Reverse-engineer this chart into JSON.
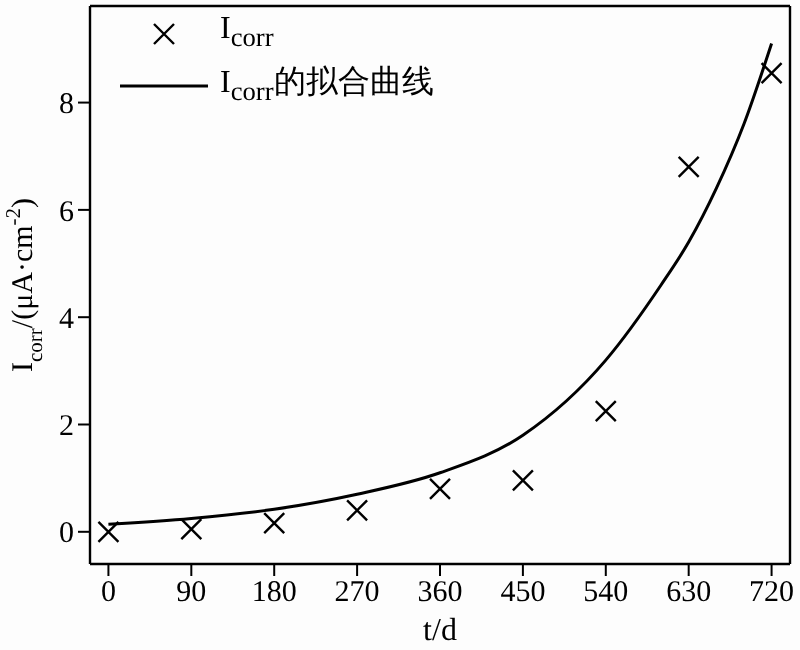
{
  "chart_data": {
    "type": "scatter",
    "xlabel": "t/d",
    "ylabel": "I$_{corr}$/(μA·cm$^{-2}$)",
    "x": [
      0,
      90,
      180,
      270,
      360,
      450,
      540,
      630,
      720
    ],
    "series": [
      {
        "name": "I$_{corr}$",
        "color": "#000000",
        "marker": "cross",
        "values": [
          0.0,
          0.05,
          0.16,
          0.4,
          0.8,
          0.96,
          2.25,
          6.8,
          8.55
        ]
      },
      {
        "name": "I$_{corr}$的拟合曲线",
        "type": "line",
        "color": "#000000",
        "marker": "none",
        "line_style": "solid",
        "x": [
          0,
          90,
          180,
          270,
          360,
          450,
          540,
          600,
          630,
          660,
          690,
          720
        ],
        "values": [
          0.14,
          0.25,
          0.42,
          0.7,
          1.1,
          1.8,
          3.2,
          4.6,
          5.4,
          6.4,
          7.6,
          9.1
        ]
      }
    ],
    "xlim": [
      -20,
      740
    ],
    "xticks": [
      0,
      90,
      180,
      270,
      360,
      450,
      540,
      630,
      720
    ],
    "ylim": [
      -0.6,
      9.8
    ],
    "yticks": [
      0,
      2,
      4,
      6,
      8
    ],
    "legend": "top left"
  }
}
